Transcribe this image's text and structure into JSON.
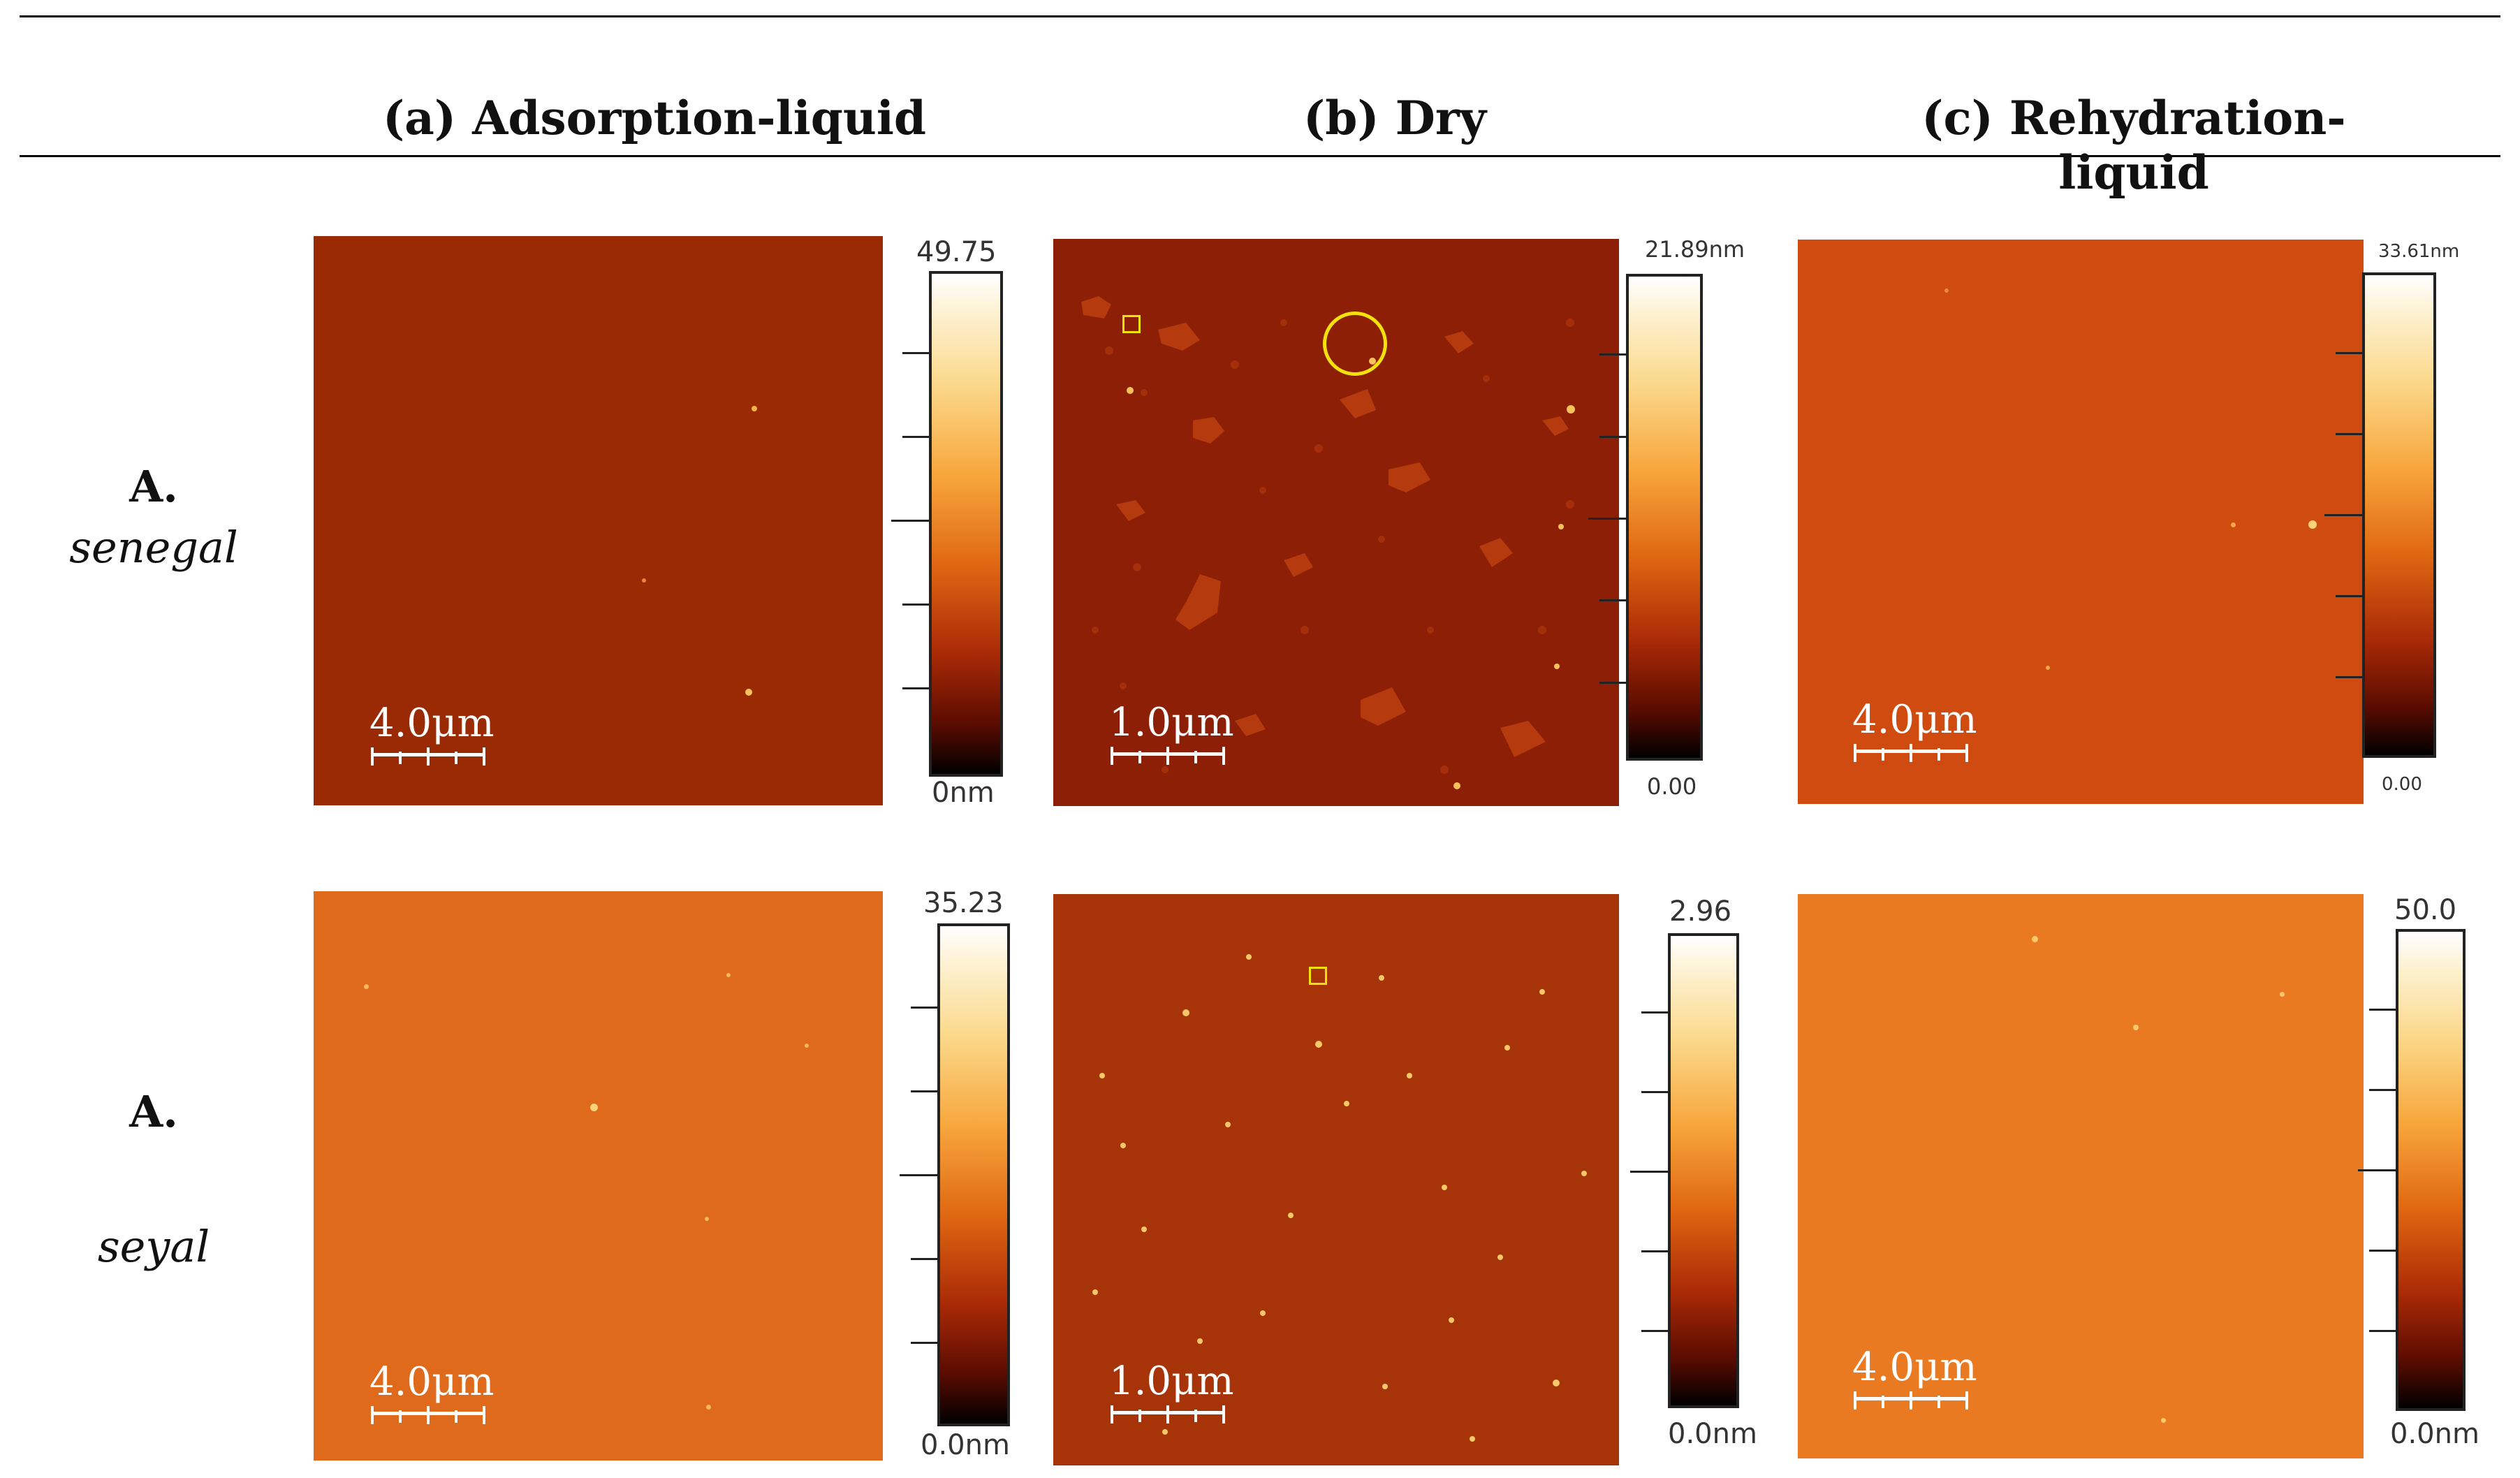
{
  "columns": {
    "a": "(a) Adsorption-liquid",
    "b": "(b) Dry",
    "c": "(c) Rehydration-liquid"
  },
  "rows": {
    "senegal": {
      "genus": "A.",
      "species": "senegal"
    },
    "seyal": {
      "genus": "A.",
      "species": "seyal"
    }
  },
  "panels": {
    "senegal_a": {
      "scale_bar": "4.0μm",
      "cbar_max": "49.75",
      "cbar_min": "0nm",
      "color": "#9a2a03"
    },
    "senegal_b": {
      "scale_bar": "1.0μm",
      "cbar_max": "21.89nm",
      "cbar_min": "0.00",
      "color": "#8c1f05"
    },
    "senegal_c": {
      "scale_bar": "4.0μm",
      "cbar_max": "33.61nm",
      "cbar_min": "0.00",
      "color": "#cf4b10"
    },
    "seyal_a": {
      "scale_bar": "4.0μm",
      "cbar_max": "35.23",
      "cbar_min": "0.0nm",
      "color": "#e06a1c"
    },
    "seyal_b": {
      "scale_bar": "1.0μm",
      "cbar_max": "2.96",
      "cbar_min": "0.0nm",
      "color": "#a73308"
    },
    "seyal_c": {
      "scale_bar": "4.0μm",
      "cbar_max": "50.0",
      "cbar_min": "0.0nm",
      "color": "#ea7a22"
    }
  }
}
